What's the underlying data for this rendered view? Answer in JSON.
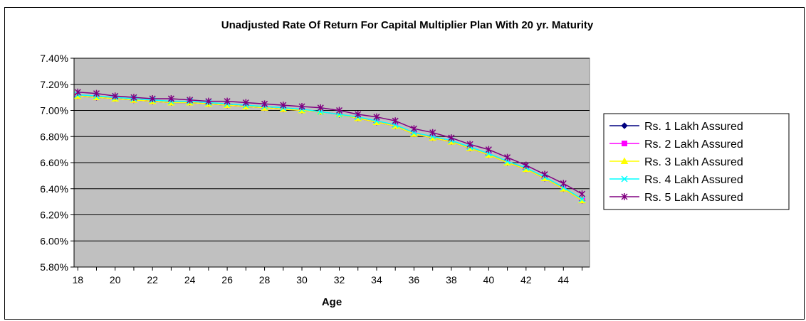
{
  "chart_data": {
    "type": "line",
    "title": "Unadjusted Rate Of Return For Capital Multiplier Plan With 20 yr. Maturity",
    "xlabel": "Age",
    "ylabel": "",
    "x": [
      18,
      19,
      20,
      21,
      22,
      23,
      24,
      25,
      26,
      27,
      28,
      29,
      30,
      31,
      32,
      33,
      34,
      35,
      36,
      37,
      38,
      39,
      40,
      41,
      42,
      43,
      44,
      45
    ],
    "x_tick_labels": [
      "18",
      "20",
      "22",
      "24",
      "26",
      "28",
      "30",
      "32",
      "34",
      "36",
      "38",
      "40",
      "42",
      "44"
    ],
    "ylim": [
      0.058,
      0.074
    ],
    "y_tick_labels": [
      "5.80%",
      "6.00%",
      "6.20%",
      "6.40%",
      "6.60%",
      "6.80%",
      "7.00%",
      "7.20%",
      "7.40%"
    ],
    "grid": "horizontal",
    "legend_position": "right",
    "plot_background": "#c0c0c0",
    "series": [
      {
        "name": "Rs. 1 Lakh Assured",
        "color": "#000080",
        "marker": "diamond",
        "values": [
          0.0711,
          0.071,
          0.0709,
          0.0708,
          0.0707,
          0.0706,
          0.0706,
          0.0705,
          0.0704,
          0.0703,
          0.0702,
          0.0701,
          0.07,
          0.0699,
          0.0697,
          0.0694,
          0.0691,
          0.0688,
          0.0682,
          0.0679,
          0.0676,
          0.0671,
          0.0666,
          0.066,
          0.0655,
          0.0648,
          0.064,
          0.0631
        ]
      },
      {
        "name": "Rs. 2 Lakh Assured",
        "color": "#ff00ff",
        "marker": "square",
        "values": [
          0.0711,
          0.071,
          0.0709,
          0.0708,
          0.0707,
          0.0706,
          0.0706,
          0.0705,
          0.0704,
          0.0703,
          0.0702,
          0.0701,
          0.07,
          0.0699,
          0.0697,
          0.0694,
          0.0691,
          0.0688,
          0.0682,
          0.0679,
          0.0676,
          0.0671,
          0.0666,
          0.066,
          0.0655,
          0.0648,
          0.064,
          0.0631
        ]
      },
      {
        "name": "Rs. 3 Lakh Assured",
        "color": "#ffff00",
        "marker": "triangle",
        "values": [
          0.0711,
          0.071,
          0.0709,
          0.0708,
          0.0707,
          0.0706,
          0.0706,
          0.0705,
          0.0704,
          0.0703,
          0.0702,
          0.0701,
          0.07,
          0.0699,
          0.0697,
          0.0694,
          0.0691,
          0.0688,
          0.0682,
          0.0679,
          0.0676,
          0.0671,
          0.0666,
          0.066,
          0.0655,
          0.0648,
          0.064,
          0.0631
        ]
      },
      {
        "name": "Rs. 4 Lakh Assured",
        "color": "#00ffff",
        "marker": "x",
        "values": [
          0.0712,
          0.0711,
          0.071,
          0.0709,
          0.0708,
          0.0707,
          0.0707,
          0.0706,
          0.0705,
          0.0704,
          0.0703,
          0.0702,
          0.0701,
          0.0699,
          0.0697,
          0.0695,
          0.0692,
          0.0689,
          0.0683,
          0.068,
          0.0677,
          0.0672,
          0.0667,
          0.0661,
          0.0656,
          0.0649,
          0.0641,
          0.0632
        ]
      },
      {
        "name": "Rs. 5 Lakh Assured",
        "color": "#800080",
        "marker": "asterisk",
        "values": [
          0.0714,
          0.0713,
          0.0711,
          0.071,
          0.0709,
          0.0709,
          0.0708,
          0.0707,
          0.0707,
          0.0706,
          0.0705,
          0.0704,
          0.0703,
          0.0702,
          0.07,
          0.0697,
          0.0695,
          0.0692,
          0.0686,
          0.0683,
          0.0679,
          0.0674,
          0.067,
          0.0664,
          0.0658,
          0.0651,
          0.0644,
          0.0636
        ]
      }
    ]
  }
}
